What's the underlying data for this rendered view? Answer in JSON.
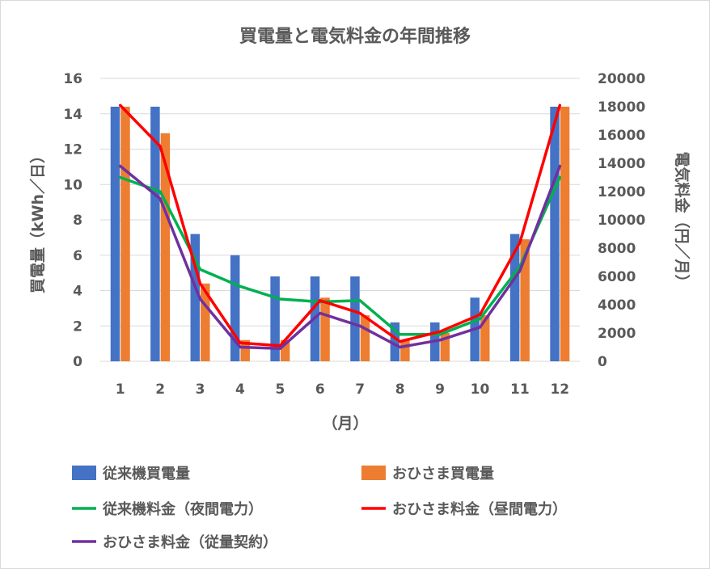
{
  "chart_data": {
    "type": "bar",
    "title": "買電量と電気料金の年間推移",
    "xlabel": "（月）",
    "ylabel": "買電量（kWh／日）",
    "y2label": "電気料金（円／月）",
    "categories": [
      "1",
      "2",
      "3",
      "4",
      "5",
      "6",
      "7",
      "8",
      "9",
      "10",
      "11",
      "12"
    ],
    "ylim": [
      0,
      16
    ],
    "yticks": [
      "0",
      "2",
      "4",
      "6",
      "8",
      "10",
      "12",
      "14",
      "16"
    ],
    "y2lim": [
      0,
      20000
    ],
    "y2ticks": [
      "0",
      "2000",
      "4000",
      "6000",
      "8000",
      "10000",
      "12000",
      "14000",
      "16000",
      "18000",
      "20000"
    ],
    "grid": true,
    "legend_position": "bottom",
    "bar_series": [
      {
        "name": "従来機買電量",
        "color": "#4472c4",
        "axis": "left",
        "values": [
          14.4,
          14.4,
          7.2,
          6.0,
          4.8,
          4.8,
          4.8,
          2.2,
          2.2,
          3.6,
          7.2,
          14.4
        ]
      },
      {
        "name": "おひさま買電量",
        "color": "#ed7d31",
        "axis": "left",
        "values": [
          14.4,
          12.9,
          4.4,
          1.2,
          1.2,
          3.6,
          2.6,
          1.2,
          1.6,
          2.6,
          6.9,
          14.4
        ]
      }
    ],
    "line_series": [
      {
        "name": "従来機料金（夜間電力）",
        "color": "#00b050",
        "axis": "right",
        "values": [
          13000,
          12000,
          6500,
          5300,
          4400,
          4200,
          4300,
          1900,
          1900,
          3000,
          6700,
          13000
        ]
      },
      {
        "name": "おひさま料金（昼間電力）",
        "color": "#ff0000",
        "axis": "right",
        "values": [
          18100,
          15200,
          5500,
          1300,
          1100,
          4300,
          3400,
          1400,
          2100,
          3300,
          8400,
          18100
        ]
      },
      {
        "name": "おひさま料金（従量契約）",
        "color": "#7030a0",
        "axis": "right",
        "values": [
          13800,
          11500,
          4400,
          1000,
          900,
          3400,
          2500,
          1000,
          1500,
          2400,
          6400,
          13800
        ]
      }
    ]
  }
}
